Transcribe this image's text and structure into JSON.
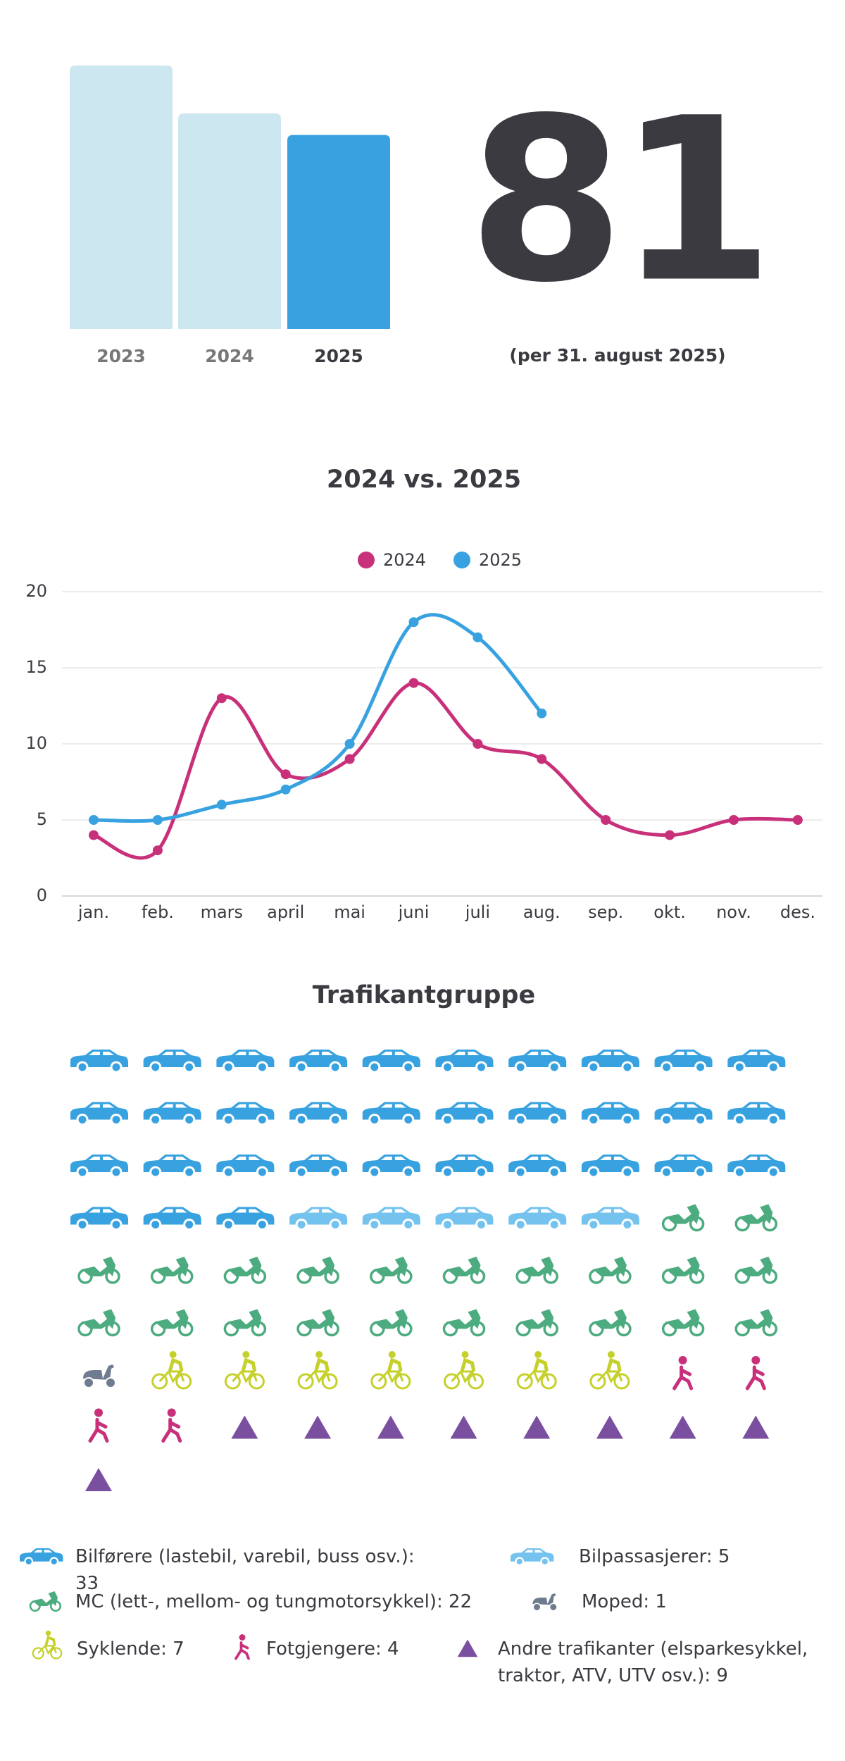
{
  "chart_data": [
    {
      "type": "bar",
      "categories": [
        "2023",
        "2024",
        "2025"
      ],
      "values": [
        110,
        90,
        81
      ],
      "colors": [
        "#cde7f0",
        "#cde7f0",
        "#38a2e0"
      ],
      "note": "(per 31. august 2025)"
    },
    {
      "type": "line",
      "title": "2024 vs. 2025",
      "categories": [
        "jan.",
        "feb.",
        "mars",
        "april",
        "mai",
        "juni",
        "juli",
        "aug.",
        "sep.",
        "okt.",
        "nov.",
        "des."
      ],
      "series": [
        {
          "name": "2024",
          "color": "#c8307a",
          "values": [
            4,
            3,
            13,
            8,
            9,
            14,
            10,
            9,
            5,
            4,
            5,
            5
          ]
        },
        {
          "name": "2025",
          "color": "#38a2e0",
          "values": [
            5,
            5,
            6,
            7,
            10,
            18,
            17,
            12,
            null,
            null,
            null,
            null
          ]
        }
      ],
      "ylim": [
        0,
        20
      ],
      "yticks": [
        0,
        5,
        10,
        15,
        20
      ],
      "grid": true,
      "legend": "top"
    },
    {
      "type": "pictogram",
      "title": "Trafikantgruppe",
      "categories": [
        "Bilførere (lastebil, varebil, buss osv.): 33",
        "Bilpassasjerer: 5",
        "MC (lett-, mellom- og tungmotorsykkel): 22",
        "Moped: 1",
        "Syklende: 7",
        "Fotgjengere: 4",
        "Andre trafikanter (elsparkesykkel, traktor, ATV, UTV osv.): 9"
      ],
      "values": [
        33,
        5,
        22,
        1,
        7,
        4,
        9
      ],
      "icons": [
        "car",
        "car",
        "motorcycle",
        "moped",
        "bicycle",
        "pedestrian",
        "triangle"
      ],
      "colors": [
        "#38a2e0",
        "#74c3ef",
        "#4dab80",
        "#6f7c90",
        "#c5d12a",
        "#c8307a",
        "#7a4fa0"
      ],
      "columns": 10
    }
  ]
}
